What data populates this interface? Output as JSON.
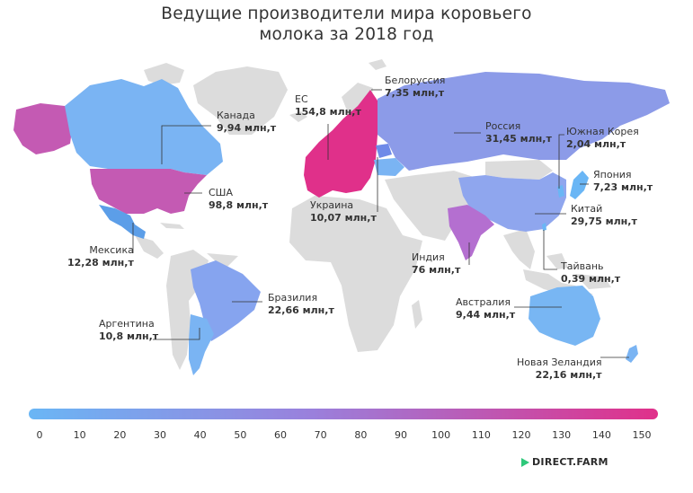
{
  "title_line1": "Ведущие производители мира коровьего",
  "title_line2": "молока за 2018 год",
  "unit": "млн,т",
  "colors": {
    "land": "#dcdcdc",
    "low": "#6ab6f5",
    "mid": "#9a80dc",
    "high": "#e0308a"
  },
  "countries": [
    {
      "id": "canada",
      "name": "Канада",
      "value_label": "9,94 млн,т",
      "value": 9.94
    },
    {
      "id": "usa",
      "name": "США",
      "value_label": "98,8 млн,т",
      "value": 98.8
    },
    {
      "id": "mexico",
      "name": "Мексика",
      "value_label": "12,28 млн,т",
      "value": 12.28
    },
    {
      "id": "brazil",
      "name": "Бразилия",
      "value_label": "22,66 млн,т",
      "value": 22.66
    },
    {
      "id": "argentina",
      "name": "Аргентина",
      "value_label": "10,8 млн,т",
      "value": 10.8
    },
    {
      "id": "eu",
      "name": "ЕС",
      "value_label": "154,8 млн,т",
      "value": 154.8
    },
    {
      "id": "belarus",
      "name": "Белоруссия",
      "value_label": "7,35 млн,т",
      "value": 7.35
    },
    {
      "id": "ukraine",
      "name": "Украина",
      "value_label": "10,07 млн,т",
      "value": 10.07
    },
    {
      "id": "russia",
      "name": "Россия",
      "value_label": "31,45 млн,т",
      "value": 31.45
    },
    {
      "id": "south_korea",
      "name": "Южная Корея",
      "value_label": "2,04 млн,т",
      "value": 2.04
    },
    {
      "id": "japan",
      "name": "Япония",
      "value_label": "7,23 млн,т",
      "value": 7.23
    },
    {
      "id": "china",
      "name": "Китай",
      "value_label": "29,75 млн,т",
      "value": 29.75
    },
    {
      "id": "india",
      "name": "Индия",
      "value_label": "76 млн,т",
      "value": 76
    },
    {
      "id": "taiwan",
      "name": "Тайвань",
      "value_label": "0,39 млн,т",
      "value": 0.39
    },
    {
      "id": "australia",
      "name": "Австралия",
      "value_label": "9,44 млн,т",
      "value": 9.44
    },
    {
      "id": "new_zealand",
      "name": "Новая Зеландия",
      "value_label": "22,16 млн,т",
      "value": 22.16
    }
  ],
  "scale": {
    "min": 0,
    "max": 150,
    "ticks": [
      "0",
      "10",
      "20",
      "30",
      "40",
      "50",
      "60",
      "70",
      "80",
      "90",
      "100",
      "110",
      "120",
      "130",
      "140",
      "150"
    ]
  },
  "brand": "DIRECT.FARM"
}
